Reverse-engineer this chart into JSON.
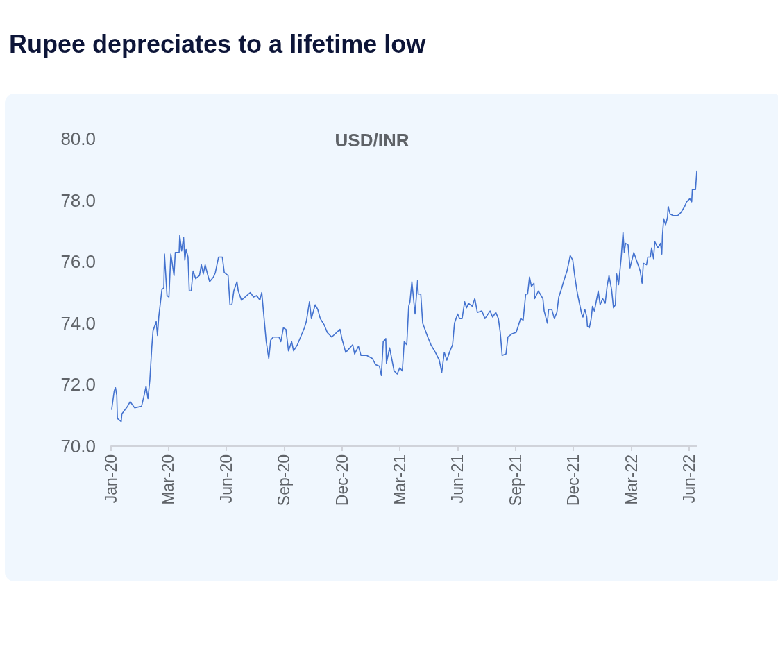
{
  "chart_data": {
    "type": "line",
    "title": "Rupee depreciates to a lifetime low",
    "subtitle": "USD/INR",
    "x": [
      "2020-01-02",
      "2020-01-06",
      "2020-01-08",
      "2020-01-10",
      "2020-01-11",
      "2020-01-17",
      "2020-01-18",
      "2020-01-27",
      "2020-01-31",
      "2020-02-07",
      "2020-02-18",
      "2020-02-22",
      "2020-02-25",
      "2020-02-28",
      "2020-03-02",
      "2020-03-05",
      "2020-03-07",
      "2020-03-12",
      "2020-03-14",
      "2020-03-16",
      "2020-03-21",
      "2020-03-24",
      "2020-03-25",
      "2020-03-29",
      "2020-04-01",
      "2020-04-04",
      "2020-04-09",
      "2020-04-11",
      "2020-04-17",
      "2020-04-18",
      "2020-04-21",
      "2020-04-24",
      "2020-04-26",
      "2020-04-28",
      "2020-05-01",
      "2020-05-03",
      "2020-05-06",
      "2020-05-09",
      "2020-05-13",
      "2020-05-19",
      "2020-05-22",
      "2020-05-25",
      "2020-05-28",
      "2020-05-31",
      "2020-06-04",
      "2020-06-10",
      "2020-06-13",
      "2020-06-18",
      "2020-06-24",
      "2020-06-27",
      "2020-07-03",
      "2020-07-06",
      "2020-07-09",
      "2020-07-12",
      "2020-07-17",
      "2020-07-19",
      "2020-07-24",
      "2020-08-07",
      "2020-08-12",
      "2020-08-17",
      "2020-08-22",
      "2020-08-25",
      "2020-08-28",
      "2020-09-01",
      "2020-09-05",
      "2020-09-08",
      "2020-09-12",
      "2020-09-21",
      "2020-09-24",
      "2020-09-28",
      "2020-10-02",
      "2020-10-06",
      "2020-10-11",
      "2020-10-14",
      "2020-10-20",
      "2020-10-25",
      "2020-10-31",
      "2020-11-03",
      "2020-11-08",
      "2020-11-11",
      "2020-11-17",
      "2020-11-21",
      "2020-11-25",
      "2020-12-01",
      "2020-12-06",
      "2020-12-13",
      "2020-12-26",
      "2020-12-29",
      "2021-01-04",
      "2021-01-15",
      "2021-01-18",
      "2021-01-24",
      "2021-01-28",
      "2021-02-06",
      "2021-02-15",
      "2021-02-20",
      "2021-02-26",
      "2021-03-01",
      "2021-03-04",
      "2021-03-08",
      "2021-03-09",
      "2021-03-14",
      "2021-03-21",
      "2021-03-26",
      "2021-03-30",
      "2021-04-03",
      "2021-04-06",
      "2021-04-10",
      "2021-04-13",
      "2021-04-15",
      "2021-04-18",
      "2021-04-23",
      "2021-04-27",
      "2021-04-28",
      "2021-05-02",
      "2021-05-05",
      "2021-05-13",
      "2021-05-18",
      "2021-05-25",
      "2021-05-31",
      "2021-06-04",
      "2021-06-08",
      "2021-06-12",
      "2021-06-16",
      "2021-06-21",
      "2021-06-24",
      "2021-06-29",
      "2021-07-02",
      "2021-07-06",
      "2021-07-10",
      "2021-07-13",
      "2021-07-16",
      "2021-07-22",
      "2021-07-26",
      "2021-07-30",
      "2021-08-06",
      "2021-08-11",
      "2021-08-19",
      "2021-08-23",
      "2021-08-28",
      "2021-09-01",
      "2021-09-04",
      "2021-09-07",
      "2021-09-13",
      "2021-09-16",
      "2021-09-22",
      "2021-09-29",
      "2021-10-06",
      "2021-10-10",
      "2021-10-14",
      "2021-10-17",
      "2021-10-20",
      "2021-10-23",
      "2021-10-27",
      "2021-10-28",
      "2021-11-03",
      "2021-11-10",
      "2021-11-12",
      "2021-11-17",
      "2021-11-19",
      "2021-11-24",
      "2021-11-28",
      "2021-12-02",
      "2021-12-05",
      "2021-12-09",
      "2021-12-14",
      "2021-12-18",
      "2021-12-23",
      "2021-12-27",
      "2021-12-30",
      "2022-01-03",
      "2022-01-07",
      "2022-01-10",
      "2022-01-12",
      "2022-01-15",
      "2022-01-18",
      "2022-01-19",
      "2022-01-22",
      "2022-01-25",
      "2022-01-27",
      "2022-01-30",
      "2022-02-05",
      "2022-02-08",
      "2022-02-12",
      "2022-02-16",
      "2022-02-19",
      "2022-02-22",
      "2022-02-26",
      "2022-03-01",
      "2022-03-04",
      "2022-03-06",
      "2022-03-09",
      "2022-03-13",
      "2022-03-16",
      "2022-03-18",
      "2022-03-20",
      "2022-03-24",
      "2022-03-27",
      "2022-04-02",
      "2022-04-07",
      "2022-04-12",
      "2022-04-15",
      "2022-04-17",
      "2022-04-22",
      "2022-04-24",
      "2022-04-28",
      "2022-04-30",
      "2022-05-03",
      "2022-05-05",
      "2022-05-10",
      "2022-05-14",
      "2022-05-16",
      "2022-05-17",
      "2022-05-19",
      "2022-05-22",
      "2022-05-25",
      "2022-05-26",
      "2022-05-29",
      "2022-06-03",
      "2022-06-10",
      "2022-06-15",
      "2022-06-21",
      "2022-06-24",
      "2022-06-29",
      "2022-07-02",
      "2022-07-03",
      "2022-07-08",
      "2022-07-10"
    ],
    "series": [
      {
        "color": "#4372cf",
        "values": [
          71.2,
          71.8,
          71.9,
          71.65,
          70.9,
          70.8,
          71.05,
          71.3,
          71.45,
          71.25,
          71.3,
          71.65,
          71.95,
          71.55,
          72.15,
          73.2,
          73.75,
          74.05,
          73.6,
          74.2,
          75.1,
          75.15,
          76.25,
          74.9,
          74.85,
          76.25,
          75.55,
          76.3,
          76.3,
          76.85,
          76.35,
          76.8,
          76.05,
          76.4,
          76.15,
          75.05,
          75.05,
          75.7,
          75.45,
          75.55,
          75.9,
          75.6,
          75.9,
          75.65,
          75.35,
          75.5,
          75.65,
          76.15,
          76.15,
          75.65,
          75.55,
          74.6,
          74.6,
          75.05,
          75.35,
          75.05,
          74.75,
          75.0,
          74.85,
          74.9,
          74.75,
          75.0,
          74.3,
          73.4,
          72.85,
          73.45,
          73.55,
          73.55,
          73.4,
          73.85,
          73.8,
          73.1,
          73.4,
          73.1,
          73.3,
          73.55,
          73.85,
          74.05,
          74.7,
          74.15,
          74.6,
          74.45,
          74.15,
          73.95,
          73.7,
          73.55,
          73.8,
          73.5,
          73.05,
          73.3,
          73.0,
          73.25,
          72.95,
          72.95,
          72.85,
          72.65,
          72.6,
          72.3,
          73.4,
          73.5,
          72.7,
          73.2,
          72.45,
          72.35,
          72.55,
          72.45,
          73.4,
          73.3,
          74.55,
          74.7,
          75.35,
          74.3,
          75.4,
          74.95,
          74.95,
          74.0,
          73.55,
          73.3,
          73.05,
          72.8,
          72.4,
          73.05,
          72.8,
          73.05,
          73.3,
          74.0,
          74.3,
          74.15,
          74.15,
          74.7,
          74.5,
          74.65,
          74.55,
          74.8,
          74.35,
          74.4,
          74.15,
          74.4,
          74.2,
          74.35,
          74.15,
          73.7,
          72.95,
          73.0,
          73.55,
          73.65,
          73.7,
          74.15,
          74.1,
          74.95,
          74.95,
          75.5,
          75.2,
          75.3,
          74.8,
          75.05,
          74.8,
          74.4,
          74.0,
          74.45,
          74.45,
          74.15,
          74.35,
          74.85,
          75.1,
          75.45,
          75.7,
          76.2,
          76.05,
          75.55,
          75.0,
          74.6,
          74.3,
          74.2,
          74.45,
          74.2,
          73.9,
          73.85,
          74.15,
          74.55,
          74.4,
          75.05,
          74.6,
          74.8,
          74.65,
          75.2,
          75.55,
          75.1,
          74.5,
          74.6,
          75.6,
          75.25,
          76.1,
          76.95,
          76.3,
          76.6,
          76.55,
          75.8,
          76.3,
          76.0,
          75.7,
          75.3,
          75.95,
          75.9,
          76.15,
          76.15,
          76.45,
          76.1,
          76.65,
          76.45,
          76.6,
          76.25,
          76.85,
          77.4,
          77.2,
          77.45,
          77.8,
          77.55,
          77.5,
          77.5,
          77.6,
          77.8,
          77.95,
          78.05,
          77.95,
          78.35,
          78.35,
          78.95
        ]
      }
    ],
    "xlim": [
      "2020-01-01",
      "2022-07-10"
    ],
    "xticks": [
      {
        "value": "2020-01-01",
        "label": "Jan-20"
      },
      {
        "value": "2020-03-31",
        "label": "Mar-20"
      },
      {
        "value": "2020-06-30",
        "label": "Jun-20"
      },
      {
        "value": "2020-09-29",
        "label": "Sep-20"
      },
      {
        "value": "2020-12-29",
        "label": "Dec-20"
      },
      {
        "value": "2021-03-30",
        "label": "Mar-21"
      },
      {
        "value": "2021-06-29",
        "label": "Jun-21"
      },
      {
        "value": "2021-09-28",
        "label": "Sep-21"
      },
      {
        "value": "2021-12-28",
        "label": "Dec-21"
      },
      {
        "value": "2022-03-29",
        "label": "Mar-22"
      },
      {
        "value": "2022-06-28",
        "label": "Jun-22"
      }
    ],
    "ylim": [
      70,
      80
    ],
    "yticks": [
      {
        "value": 70,
        "label": "70.0"
      },
      {
        "value": 72,
        "label": "72.0"
      },
      {
        "value": 74,
        "label": "74.0"
      },
      {
        "value": 76,
        "label": "76.0"
      },
      {
        "value": 78,
        "label": "78.0"
      },
      {
        "value": 80,
        "label": "80.0"
      }
    ],
    "grid": false,
    "marker": "none",
    "line_style": "solid"
  }
}
